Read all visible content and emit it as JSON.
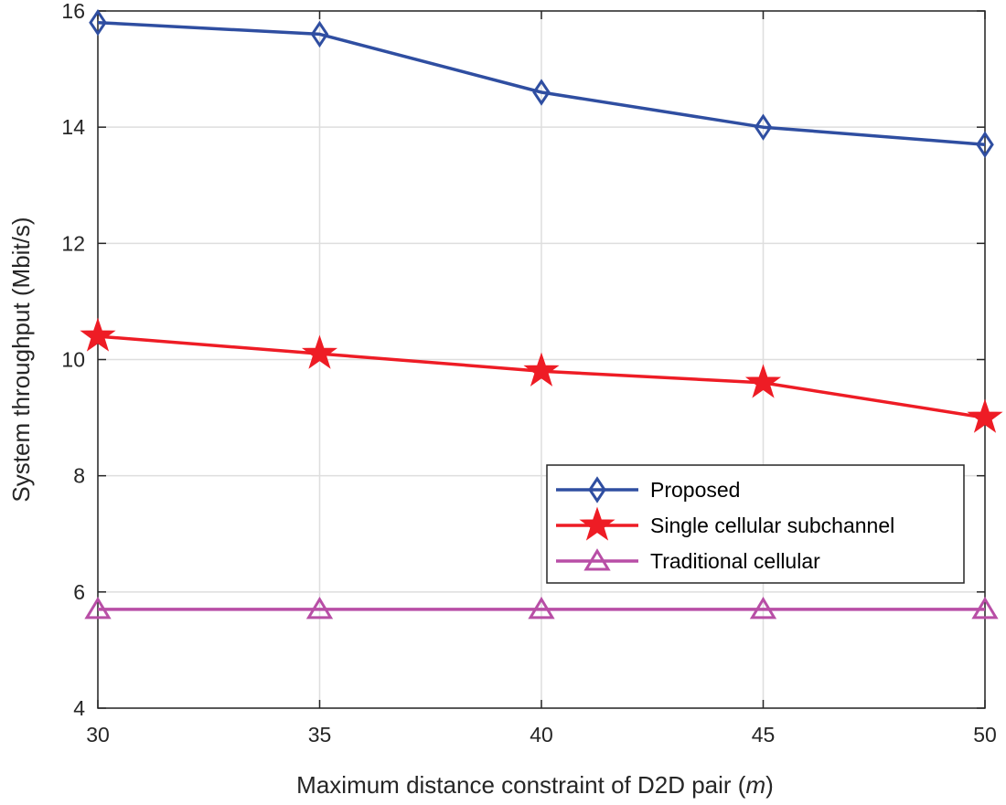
{
  "chart_data": {
    "type": "line",
    "title": "",
    "xlabel": "Maximum distance constraint of D2D pair (m)",
    "xlabel_main": "Maximum distance constraint of D2D pair (",
    "xlabel_unit": "m",
    "xlabel_close": ")",
    "ylabel": "System throughput (Mbit/s)",
    "x": [
      30,
      35,
      40,
      45,
      50
    ],
    "xlim": [
      30,
      50
    ],
    "ylim": [
      4,
      16
    ],
    "x_ticks": [
      30,
      35,
      40,
      45,
      50
    ],
    "y_ticks": [
      4,
      6,
      8,
      10,
      12,
      14,
      16
    ],
    "grid": true,
    "legend_position": "lower-right",
    "series": [
      {
        "name": "Proposed",
        "values": [
          15.8,
          15.6,
          14.6,
          14.0,
          13.7
        ],
        "color": "#2f4ea1",
        "marker": "diamond"
      },
      {
        "name": "Single cellular subchannel",
        "values": [
          10.4,
          10.1,
          9.8,
          9.6,
          9.0
        ],
        "color": "#ee1c25",
        "marker": "star"
      },
      {
        "name": "Traditional cellular",
        "values": [
          5.7,
          5.7,
          5.7,
          5.7,
          5.7
        ],
        "color": "#b84ea6",
        "marker": "triangle"
      }
    ]
  }
}
